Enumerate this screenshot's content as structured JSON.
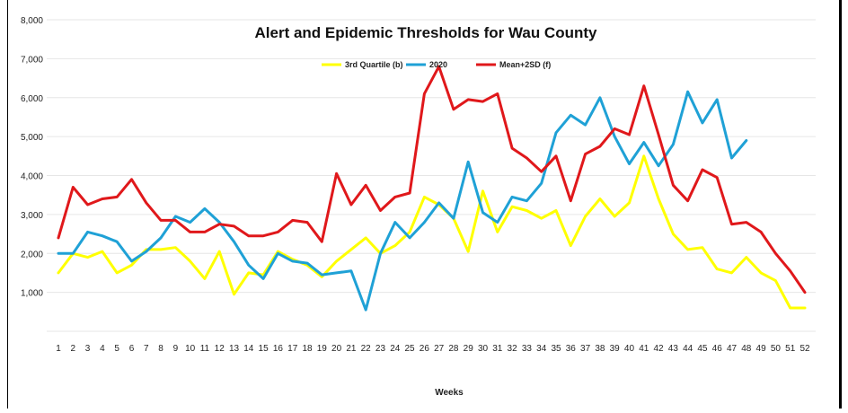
{
  "chart_data": {
    "type": "line",
    "title": "Alert and Epidemic Thresholds for Wau County",
    "xlabel": "Weeks",
    "ylabel": "",
    "ylim": [
      0,
      8000
    ],
    "yticks": [
      "",
      "1,000",
      "2,000",
      "3,000",
      "4,000",
      "5,000",
      "6,000",
      "7,000",
      "8,000"
    ],
    "grid": true,
    "legend_position": "top-center",
    "categories": [
      "1",
      "2",
      "3",
      "4",
      "5",
      "6",
      "7",
      "8",
      "9",
      "10",
      "11",
      "12",
      "13",
      "14",
      "15",
      "16",
      "17",
      "18",
      "19",
      "20",
      "21",
      "22",
      "23",
      "24",
      "25",
      "26",
      "27",
      "28",
      "29",
      "30",
      "31",
      "32",
      "33",
      "34",
      "35",
      "36",
      "37",
      "38",
      "39",
      "40",
      "41",
      "42",
      "43",
      "44",
      "45",
      "46",
      "47",
      "48",
      "49",
      "50",
      "51",
      "52"
    ],
    "series": [
      {
        "name": "3rd Quartile (b)",
        "color": "#ffff00",
        "values": [
          1500,
          2000,
          1900,
          2050,
          1500,
          1700,
          2100,
          2100,
          2150,
          1800,
          1350,
          2050,
          950,
          1500,
          1450,
          2050,
          1850,
          1700,
          1400,
          1800,
          2100,
          2400,
          2000,
          2200,
          2550,
          3450,
          3250,
          2900,
          2050,
          3600,
          2550,
          3200,
          3100,
          2900,
          3100,
          2200,
          2950,
          3400,
          2950,
          3300,
          4500,
          3400,
          2500,
          2100,
          2150,
          1600,
          1500,
          1900,
          1500,
          1300,
          600,
          600
        ]
      },
      {
        "name": "2020",
        "color": "#1fa1d6",
        "values": [
          2000,
          2000,
          2550,
          2450,
          2300,
          1800,
          2050,
          2400,
          2950,
          2800,
          3150,
          2800,
          2300,
          1700,
          1350,
          2000,
          1800,
          1750,
          1450,
          1500,
          1550,
          550,
          2000,
          2800,
          2400,
          2800,
          3300,
          2900,
          4350,
          3050,
          2800,
          3450,
          3350,
          3800,
          5100,
          5550,
          5300,
          6000,
          5000,
          4300,
          4850,
          4250,
          4800,
          6150,
          5350,
          5950,
          4450,
          4900,
          null,
          null,
          null,
          null
        ]
      },
      {
        "name": "Mean+2SD (f)",
        "color": "#e0181b",
        "values": [
          2400,
          3700,
          3250,
          3400,
          3450,
          3900,
          3300,
          2850,
          2850,
          2550,
          2550,
          2750,
          2700,
          2450,
          2450,
          2550,
          2850,
          2800,
          2300,
          4050,
          3250,
          3750,
          3100,
          3450,
          3550,
          6100,
          6800,
          5700,
          5950,
          5900,
          6100,
          4700,
          4450,
          4100,
          4500,
          3350,
          4550,
          4750,
          5200,
          5050,
          6300,
          5050,
          3750,
          3350,
          4150,
          3950,
          2750,
          2800,
          2550,
          2000,
          1550,
          1000
        ]
      }
    ]
  }
}
